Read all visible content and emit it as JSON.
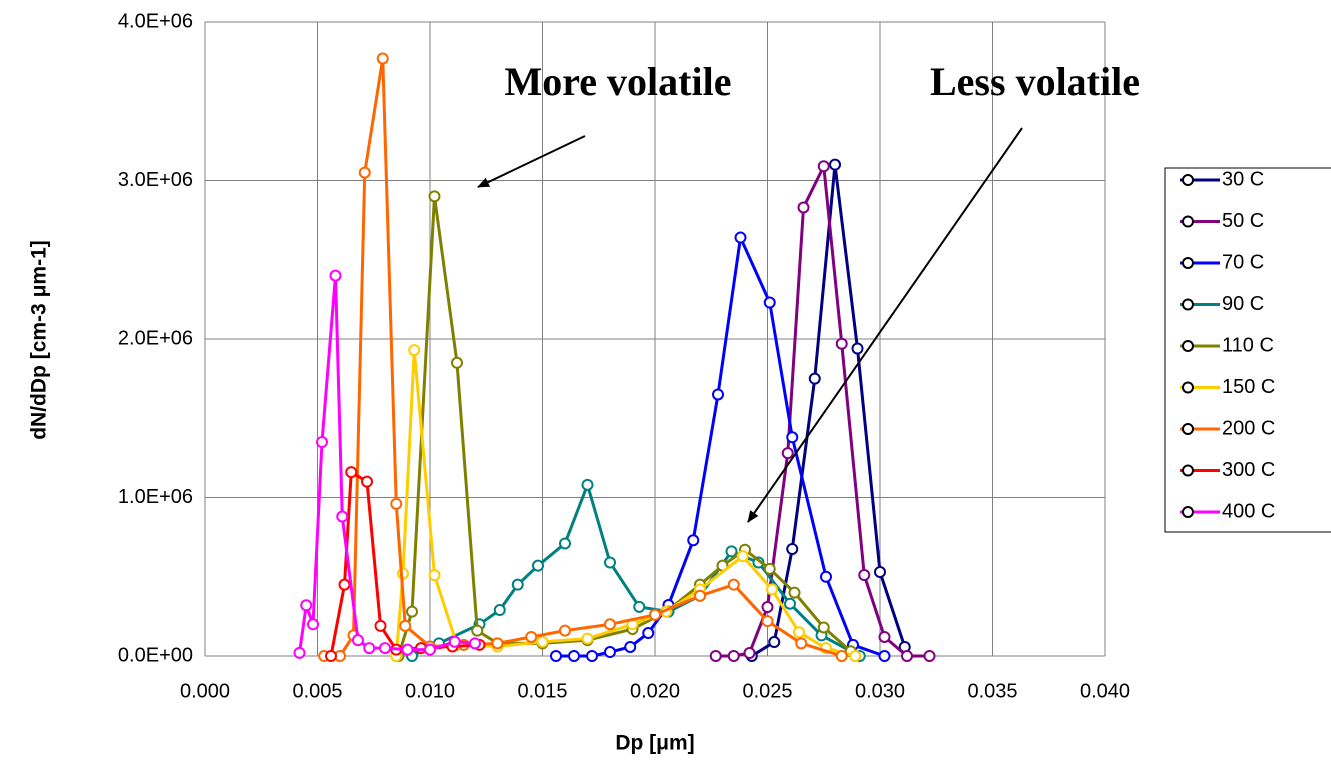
{
  "chart_data": {
    "type": "line",
    "x_label": "Dp [μm]",
    "y_label": "dN/dDp [cm-3 μm-1]",
    "annotations": [
      "More volatile",
      "Less volatile"
    ],
    "xlim": [
      0,
      0.04
    ],
    "ylim": [
      0,
      4000000
    ],
    "xticks": [
      {
        "value": 0,
        "label": "0.000"
      },
      {
        "value": 0.005,
        "label": "0.005"
      },
      {
        "value": 0.01,
        "label": "0.010"
      },
      {
        "value": 0.015,
        "label": "0.015"
      },
      {
        "value": 0.02,
        "label": "0.020"
      },
      {
        "value": 0.025,
        "label": "0.025"
      },
      {
        "value": 0.03,
        "label": "0.030"
      },
      {
        "value": 0.035,
        "label": "0.035"
      },
      {
        "value": 0.04,
        "label": "0.040"
      }
    ],
    "yticks": [
      {
        "value": 0,
        "label": "0.0E+00"
      },
      {
        "value": 1000000,
        "label": "1.0E+06"
      },
      {
        "value": 2000000,
        "label": "2.0E+06"
      },
      {
        "value": 3000000,
        "label": "3.0E+06"
      },
      {
        "value": 4000000,
        "label": "4.0E+06"
      }
    ],
    "grid": true,
    "legend": "right",
    "series": [
      {
        "name": "30 C",
        "color": "#000080",
        "x": [
          0.0243,
          0.0253,
          0.0261,
          0.0271,
          0.028,
          0.029,
          0.03,
          0.0311
        ],
        "values": [
          0,
          88000,
          675000,
          1750000,
          3100000,
          1940000,
          530000,
          57000
        ]
      },
      {
        "name": "50 C",
        "color": "#800080",
        "x": [
          0.0227,
          0.0235,
          0.0242,
          0.025,
          0.0259,
          0.0266,
          0.0275,
          0.0283,
          0.0293,
          0.0302,
          0.0312,
          0.0322
        ],
        "values": [
          0,
          0,
          19000,
          309000,
          1280000,
          2830000,
          3090000,
          1970000,
          511000,
          120000,
          0,
          0
        ]
      },
      {
        "name": "70 C",
        "color": "#0000ff",
        "x": [
          0.0156,
          0.0164,
          0.0172,
          0.018,
          0.0189,
          0.0197,
          0.0206,
          0.0217,
          0.0228,
          0.0238,
          0.0251,
          0.0261,
          0.0276,
          0.0288,
          0.0302
        ],
        "values": [
          0,
          0,
          0,
          25000,
          57000,
          145000,
          322000,
          730000,
          1650000,
          2640000,
          2230000,
          1380000,
          500000,
          70000,
          0
        ]
      },
      {
        "name": "90 C",
        "color": "#008080",
        "x": [
          0.0092,
          0.0104,
          0.0122,
          0.0131,
          0.0139,
          0.0148,
          0.016,
          0.017,
          0.018,
          0.0193,
          0.0206,
          0.022,
          0.0234,
          0.0246,
          0.026,
          0.0274,
          0.0291
        ],
        "values": [
          0,
          80000,
          200000,
          290000,
          450000,
          570000,
          710000,
          1080000,
          590000,
          310000,
          280000,
          380000,
          660000,
          590000,
          330000,
          130000,
          0
        ]
      },
      {
        "name": "110 C",
        "color": "#808000",
        "x": [
          0.0086,
          0.0092,
          0.0102,
          0.0112,
          0.0121,
          0.013,
          0.015,
          0.017,
          0.019,
          0.0205,
          0.022,
          0.023,
          0.024,
          0.0251,
          0.0262,
          0.0275,
          0.0287
        ],
        "values": [
          0,
          280000,
          2900000,
          1850000,
          160000,
          80000,
          80000,
          100000,
          170000,
          280000,
          450000,
          570000,
          670000,
          550000,
          400000,
          180000,
          30000
        ]
      },
      {
        "name": "150 C",
        "color": "#ffcc00",
        "x": [
          0.0085,
          0.0088,
          0.0093,
          0.0102,
          0.0112,
          0.013,
          0.015,
          0.017,
          0.019,
          0.0205,
          0.022,
          0.0239,
          0.0252,
          0.0264,
          0.0276,
          0.0289
        ],
        "values": [
          0,
          520000,
          1930000,
          510000,
          70000,
          60000,
          90000,
          110000,
          200000,
          280000,
          420000,
          630000,
          420000,
          150000,
          50000,
          0
        ]
      },
      {
        "name": "200 C",
        "color": "#ff6600",
        "x": [
          0.0053,
          0.006,
          0.0066,
          0.0071,
          0.0079,
          0.0085,
          0.0089,
          0.01,
          0.0115,
          0.013,
          0.0145,
          0.016,
          0.018,
          0.02,
          0.022,
          0.0235,
          0.025,
          0.0265,
          0.0283
        ],
        "values": [
          0,
          0,
          130000,
          3050000,
          3770000,
          960000,
          190000,
          60000,
          70000,
          80000,
          120000,
          160000,
          200000,
          260000,
          380000,
          450000,
          220000,
          80000,
          0
        ]
      },
      {
        "name": "300 C",
        "color": "#ff0000",
        "x": [
          0.0056,
          0.0062,
          0.0065,
          0.0072,
          0.0078,
          0.0085,
          0.0096,
          0.011,
          0.0122
        ],
        "values": [
          0,
          450000,
          1160000,
          1100000,
          190000,
          40000,
          50000,
          60000,
          70000
        ]
      },
      {
        "name": "400 C",
        "color": "#ff00ff",
        "x": [
          0.0042,
          0.0045,
          0.0048,
          0.0052,
          0.0058,
          0.0061,
          0.0068,
          0.0073,
          0.008,
          0.009,
          0.01,
          0.0111,
          0.012
        ],
        "values": [
          20000,
          320000,
          200000,
          1350000,
          2400000,
          880000,
          100000,
          50000,
          50000,
          40000,
          40000,
          90000,
          80000
        ]
      }
    ]
  }
}
